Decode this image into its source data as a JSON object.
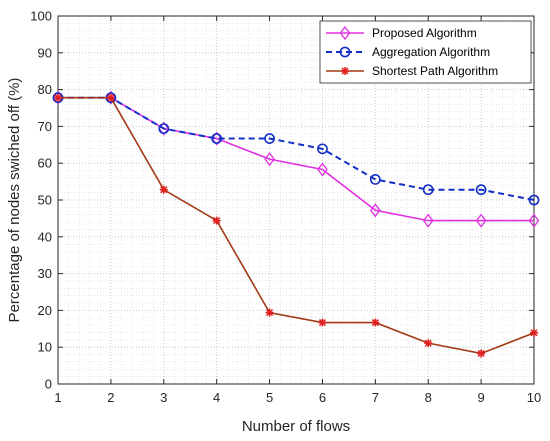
{
  "chart_data": {
    "type": "line",
    "title": "",
    "xlabel": "Number of flows",
    "ylabel": "Percentage of nodes swiched off (%)",
    "xlim": [
      1,
      10
    ],
    "ylim": [
      0,
      100
    ],
    "xticks": [
      1,
      2,
      3,
      4,
      5,
      6,
      7,
      8,
      9,
      10
    ],
    "yticks": [
      0,
      10,
      20,
      30,
      40,
      50,
      60,
      70,
      80,
      90,
      100
    ],
    "grid": "on (major and minor dotted)",
    "legend_position": "top-right",
    "x": [
      1,
      2,
      3,
      4,
      5,
      6,
      7,
      8,
      9,
      10
    ],
    "series": [
      {
        "name": "Proposed Algorithm",
        "color": "#e030e0",
        "marker": "diamond",
        "line_style": "solid",
        "values": [
          77.8,
          77.8,
          69.4,
          66.7,
          61.1,
          58.3,
          47.2,
          44.4,
          44.4,
          44.4
        ]
      },
      {
        "name": "Aggregation Algorithm",
        "color": "#1230c8",
        "marker": "circle",
        "line_style": "dashed",
        "values": [
          77.8,
          77.8,
          69.4,
          66.7,
          66.7,
          63.9,
          55.6,
          52.8,
          52.8,
          50.0
        ]
      },
      {
        "name": "Shortest Path Algorithm",
        "color": "#a23a14",
        "marker_color": "#e02020",
        "marker": "asterisk",
        "line_style": "solid",
        "values": [
          77.8,
          77.8,
          52.8,
          44.4,
          19.4,
          16.7,
          16.7,
          11.1,
          8.3,
          13.9
        ]
      }
    ]
  }
}
